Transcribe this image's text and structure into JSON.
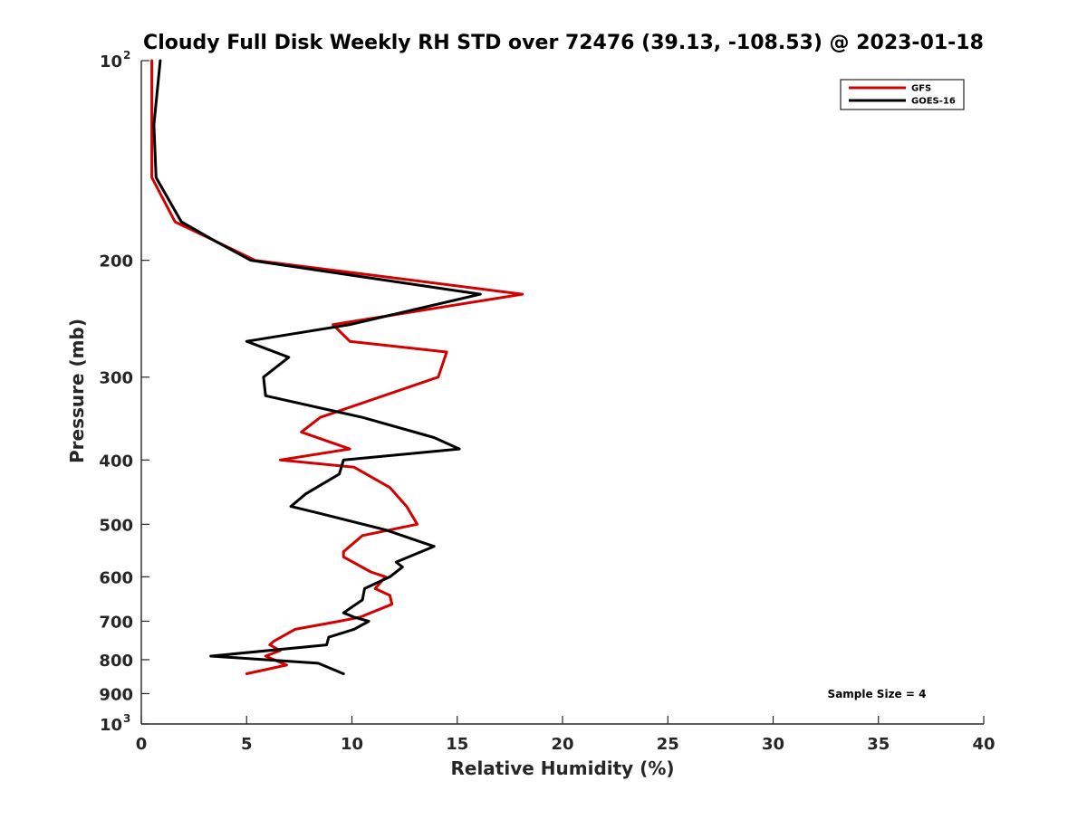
{
  "chart_data": {
    "type": "line",
    "title": "Cloudy Full Disk Weekly RH STD over 72476 (39.13, -108.53) @ 2023-01-18",
    "xlabel": "Relative Humidity (%)",
    "ylabel": "Pressure (mb)",
    "xlim": [
      0,
      40
    ],
    "ylim": [
      100,
      1000
    ],
    "y_scale": "log",
    "y_reversed": true,
    "grid": false,
    "legend_position": "top-right",
    "x_ticks": [
      0,
      5,
      10,
      15,
      20,
      25,
      30,
      35,
      40
    ],
    "x_tick_labels": [
      "0",
      "5",
      "10",
      "15",
      "20",
      "25",
      "30",
      "35",
      "40"
    ],
    "y_ticks": [
      200,
      300,
      400,
      500,
      600,
      700,
      800,
      900
    ],
    "y_tick_labels": [
      "200",
      "300",
      "400",
      "500",
      "600",
      "700",
      "800",
      "900"
    ],
    "y_major_ticks": [
      {
        "value": 100,
        "base": "10",
        "exp": "2"
      },
      {
        "value": 1000,
        "base": "10",
        "exp": "3"
      }
    ],
    "annotation": "Sample Size = 4",
    "series": [
      {
        "name": "GFS",
        "color": "#d40000",
        "points": [
          [
            0.5,
            100
          ],
          [
            0.5,
            125
          ],
          [
            0.5,
            150
          ],
          [
            1.6,
            175
          ],
          [
            3.5,
            187
          ],
          [
            5.4,
            200
          ],
          [
            18.1,
            225
          ],
          [
            9.1,
            250
          ],
          [
            9.9,
            265
          ],
          [
            14.5,
            275
          ],
          [
            14.1,
            300
          ],
          [
            8.5,
            345
          ],
          [
            7.6,
            363
          ],
          [
            9.9,
            385
          ],
          [
            6.6,
            400
          ],
          [
            10.1,
            410
          ],
          [
            11.8,
            440
          ],
          [
            12.6,
            470
          ],
          [
            13.1,
            500
          ],
          [
            10.5,
            520
          ],
          [
            9.6,
            550
          ],
          [
            9.6,
            560
          ],
          [
            10.9,
            590
          ],
          [
            11.6,
            600
          ],
          [
            11.1,
            625
          ],
          [
            11.8,
            640
          ],
          [
            11.9,
            660
          ],
          [
            10.4,
            690
          ],
          [
            9.4,
            700
          ],
          [
            7.3,
            720
          ],
          [
            6.3,
            750
          ],
          [
            6.1,
            760
          ],
          [
            6.6,
            775
          ],
          [
            5.9,
            790
          ],
          [
            6.9,
            815
          ],
          [
            5.0,
            840
          ]
        ]
      },
      {
        "name": "GOES-16",
        "color": "#000000",
        "points": [
          [
            0.9,
            100
          ],
          [
            0.6,
            125
          ],
          [
            0.7,
            150
          ],
          [
            1.9,
            175
          ],
          [
            3.5,
            187
          ],
          [
            5.2,
            200
          ],
          [
            16.1,
            225
          ],
          [
            9.9,
            250
          ],
          [
            5.0,
            265
          ],
          [
            7.0,
            280
          ],
          [
            5.8,
            300
          ],
          [
            5.9,
            320
          ],
          [
            10.5,
            345
          ],
          [
            13.9,
            370
          ],
          [
            15.1,
            385
          ],
          [
            9.6,
            400
          ],
          [
            9.4,
            420
          ],
          [
            7.8,
            450
          ],
          [
            7.1,
            470
          ],
          [
            8.3,
            480
          ],
          [
            11.6,
            510
          ],
          [
            13.9,
            540
          ],
          [
            12.1,
            570
          ],
          [
            12.4,
            580
          ],
          [
            11.8,
            600
          ],
          [
            10.6,
            625
          ],
          [
            10.5,
            650
          ],
          [
            9.6,
            680
          ],
          [
            10.1,
            690
          ],
          [
            10.8,
            700
          ],
          [
            10.1,
            720
          ],
          [
            8.9,
            740
          ],
          [
            8.8,
            760
          ],
          [
            3.3,
            790
          ],
          [
            8.4,
            810
          ],
          [
            9.6,
            840
          ]
        ]
      }
    ]
  }
}
